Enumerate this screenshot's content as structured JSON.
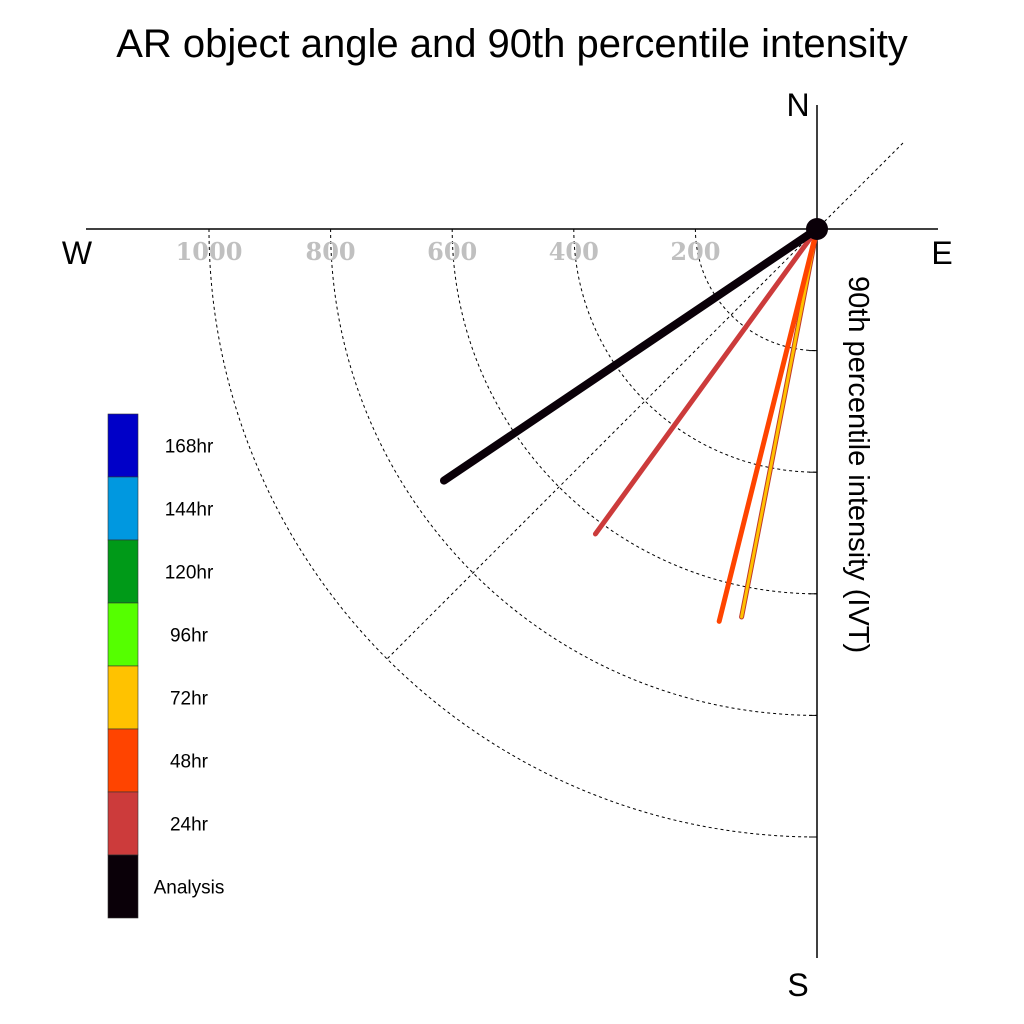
{
  "chart_data": {
    "type": "polar-line",
    "title": "AR object angle and 90th percentile intensity",
    "ylabel": "90th percentile intensity (IVT)",
    "compass": {
      "north": "N",
      "south": "S",
      "east": "E",
      "west": "W"
    },
    "radial_ticks": [
      200,
      400,
      600,
      800,
      1000
    ],
    "radial_tick_labels": [
      "200",
      "400",
      "600",
      "800",
      "1000"
    ],
    "radial_range": [
      0,
      1000
    ],
    "grid": true,
    "series": [
      {
        "name": "Analysis",
        "direction_deg": 236,
        "intensity": 740,
        "color": "#0a0008",
        "width": 8
      },
      {
        "name": "24hr",
        "direction_deg": 216,
        "intensity": 620,
        "color": "#cc3b3b",
        "width": 5
      },
      {
        "name": "48hr",
        "direction_deg": 194,
        "intensity": 665,
        "color": "#ff4400",
        "width": 5
      },
      {
        "name": "72hr",
        "direction_deg": 191,
        "intensity": 650,
        "color": "#ffc200",
        "width": 5
      }
    ],
    "legend": {
      "placement": "left",
      "entries": [
        {
          "label": "168hr",
          "color": "#0000c8"
        },
        {
          "label": "144hr",
          "color": "#0098e0"
        },
        {
          "label": "120hr",
          "color": "#009a18"
        },
        {
          "label": "96hr",
          "color": "#55ff00"
        },
        {
          "label": "72hr",
          "color": "#ffc200"
        },
        {
          "label": "48hr",
          "color": "#ff4400"
        },
        {
          "label": "24hr",
          "color": "#cc3b3b"
        },
        {
          "label": "Analysis",
          "color": "#0a0008"
        }
      ]
    }
  }
}
